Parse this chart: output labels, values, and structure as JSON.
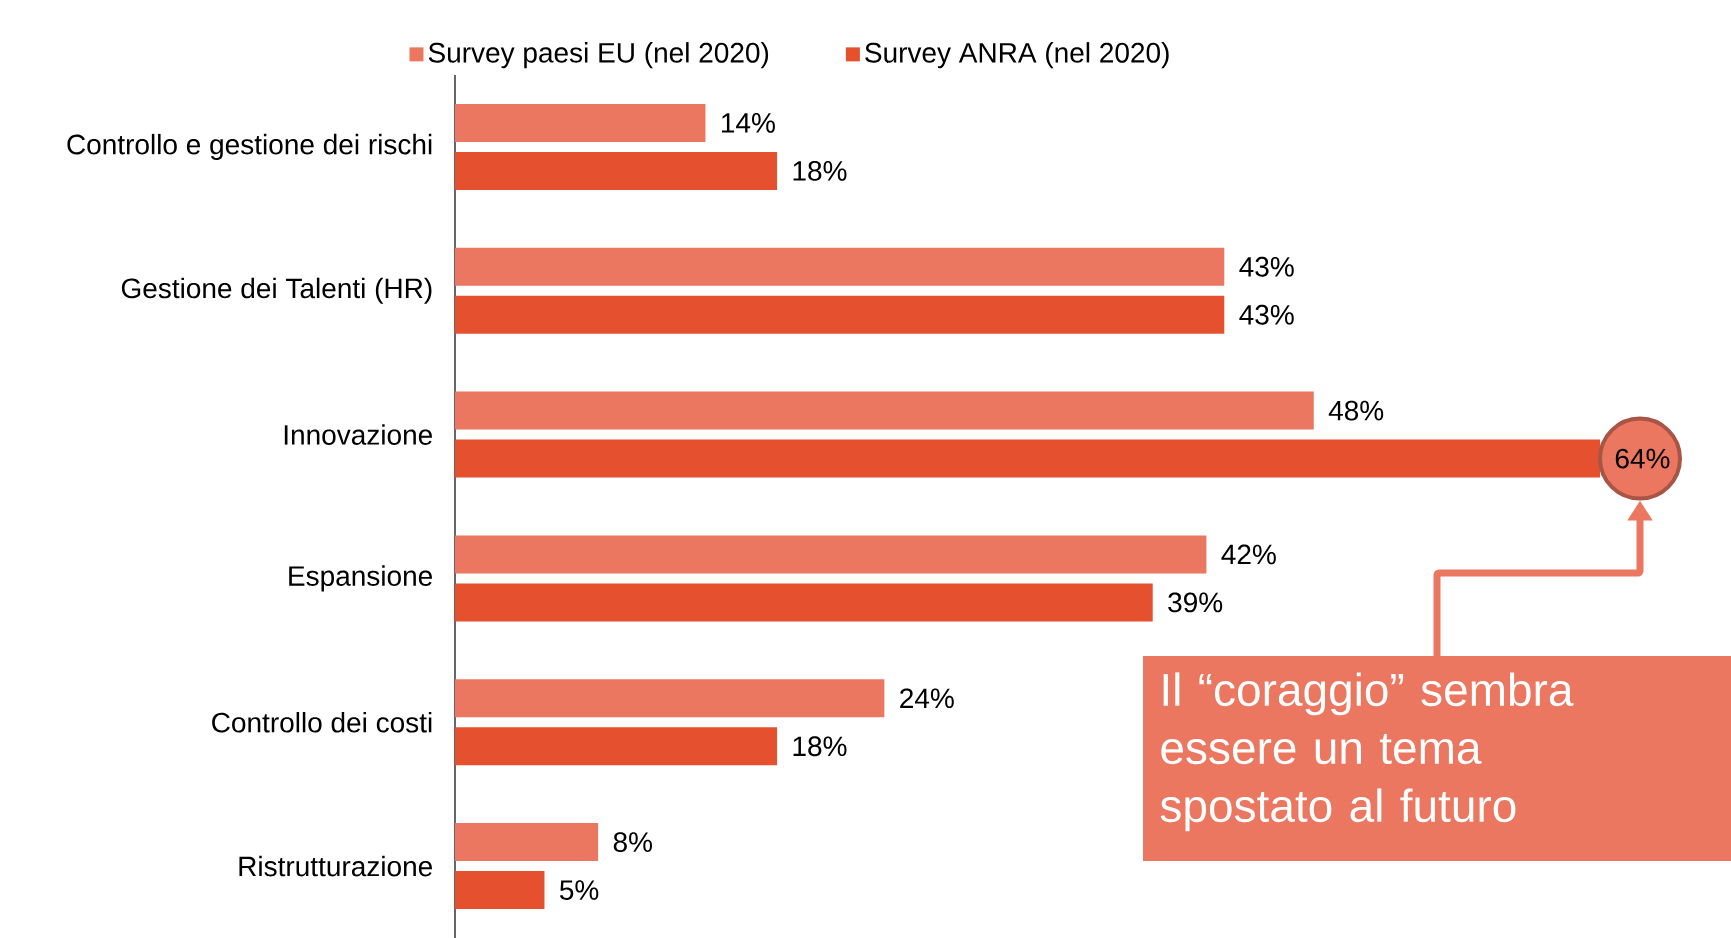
{
  "chart_data": {
    "type": "bar",
    "orientation": "horizontal",
    "categories": [
      "Controllo e gestione dei rischi",
      "Gestione dei Talenti (HR)",
      "Innovazione",
      "Espansione",
      "Controllo dei costi",
      "Ristrutturazione"
    ],
    "series": [
      {
        "name": "Survey paesi EU (nel 2020)",
        "color": "#ec7760",
        "values": [
          14,
          43,
          48,
          42,
          24,
          8
        ],
        "value_labels": [
          "14%",
          "43%",
          "48%",
          "42%",
          "24%",
          "8%"
        ]
      },
      {
        "name": "Survey ANRA (nel 2020)",
        "color": "#e5502f",
        "values": [
          18,
          43,
          64,
          39,
          18,
          5
        ],
        "value_labels": [
          "18%",
          "43%",
          "64%",
          "39%",
          "18%",
          "5%"
        ]
      }
    ],
    "legend": "top",
    "tick_labels": "y",
    "annotations": [
      "Il “coraggio” sembra essere un tema spostato al futuro"
    ]
  }
}
